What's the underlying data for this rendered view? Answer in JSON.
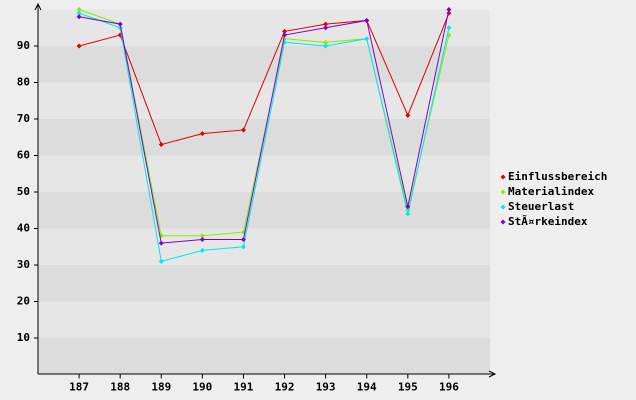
{
  "chart_data": {
    "type": "line",
    "categories": [
      "187",
      "188",
      "189",
      "190",
      "191",
      "192",
      "193",
      "194",
      "195",
      "196"
    ],
    "series": [
      {
        "name": "Einflussbereich",
        "color": "#e00000",
        "values": [
          90,
          93,
          63,
          66,
          67,
          94,
          96,
          97,
          71,
          99
        ]
      },
      {
        "name": "Materialindex",
        "color": "#80f000",
        "values": [
          100,
          96,
          38,
          38,
          39,
          92,
          91,
          92,
          45,
          93
        ]
      },
      {
        "name": "Steuerlast",
        "color": "#00e8f0",
        "values": [
          99,
          95,
          31,
          34,
          35,
          91,
          90,
          92,
          44,
          95
        ]
      },
      {
        "name": "StÃ¤rkeindex",
        "color": "#8000d0",
        "values": [
          98,
          96,
          36,
          37,
          37,
          93,
          95,
          97,
          46,
          100
        ]
      }
    ],
    "ylim": [
      0,
      100
    ],
    "yticks": [
      10,
      20,
      30,
      40,
      50,
      60,
      70,
      80,
      90
    ],
    "grid": true,
    "legend": "right"
  }
}
